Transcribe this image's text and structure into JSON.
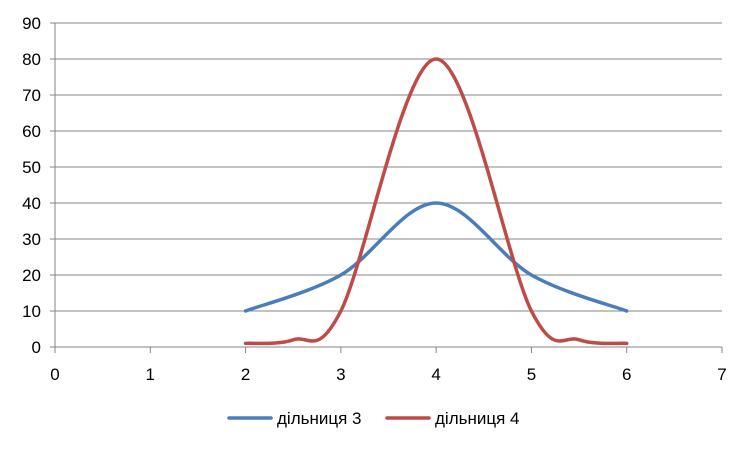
{
  "chart_data": {
    "type": "scatter",
    "title": "",
    "xlabel": "",
    "ylabel": "",
    "xlim": [
      0,
      7
    ],
    "ylim": [
      0,
      90
    ],
    "xticks": [
      "0",
      "1",
      "2",
      "3",
      "4",
      "5",
      "6",
      "7"
    ],
    "yticks": [
      "0",
      "10",
      "20",
      "30",
      "40",
      "50",
      "60",
      "70",
      "80",
      "90"
    ],
    "grid": "horizontal",
    "smooth": true,
    "legend": "bottom",
    "series": [
      {
        "name": "дільниця 3",
        "color": "#4a7ebb",
        "x": [
          2,
          3,
          4,
          5,
          6
        ],
        "y": [
          10,
          20,
          40,
          20,
          10
        ]
      },
      {
        "name": "дільниця 4",
        "color": "#be4b48",
        "x": [
          2,
          2.5,
          3,
          4,
          5,
          5.5,
          6
        ],
        "y": [
          1,
          2,
          10,
          80,
          10,
          2,
          1
        ]
      }
    ]
  }
}
